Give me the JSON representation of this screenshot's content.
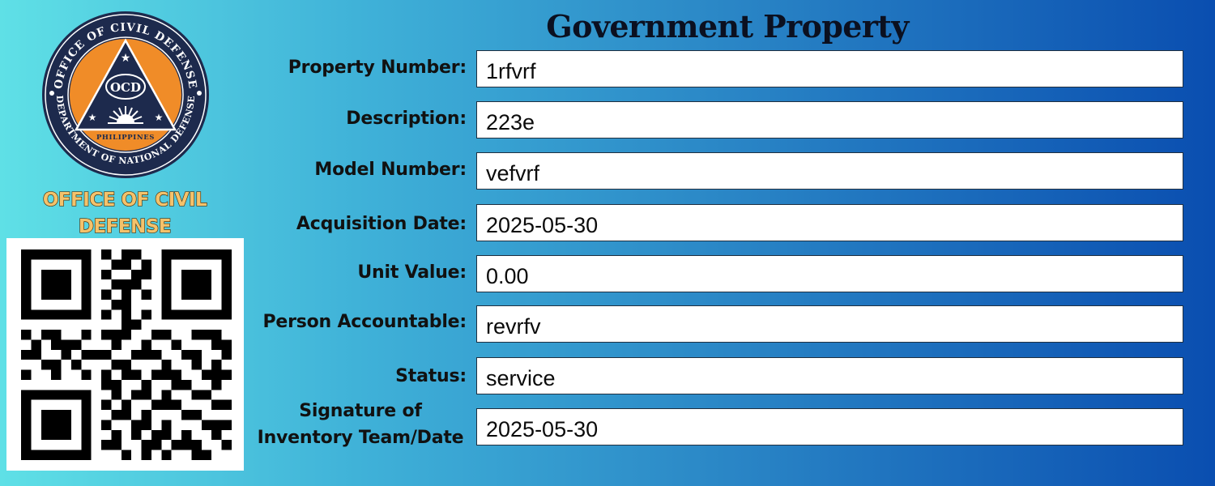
{
  "seal": {
    "outer_text": "OFFICE OF CIVIL DEFENSE",
    "bottom_text": "DEPARTMENT OF NATIONAL DEFENSE",
    "center_text": "OCD",
    "country_text": "PHILIPPINES",
    "colors": {
      "ring": "#1d2a4d",
      "disc": "#f08c28",
      "triangle": "#1d2a4d"
    }
  },
  "org_name": {
    "line1": "OFFICE OF CIVIL",
    "line2": "DEFENSE"
  },
  "title": "Government Property",
  "fields": [
    {
      "label": "Property Number:",
      "value": "1rfvrf"
    },
    {
      "label": "Description:",
      "value": "223e"
    },
    {
      "label": "Model Number:",
      "value": "vefvrf"
    },
    {
      "label": "Acquisition Date:",
      "value": "2025-05-30"
    },
    {
      "label": "Unit Value:",
      "value": "0.00"
    },
    {
      "label": "Person Accountable:",
      "value": "revrfv"
    },
    {
      "label": "Status:",
      "value": "service"
    },
    {
      "label_line1": "Signature of",
      "label_line2": "Inventory Team/Date",
      "value": "2025-05-30"
    }
  ]
}
